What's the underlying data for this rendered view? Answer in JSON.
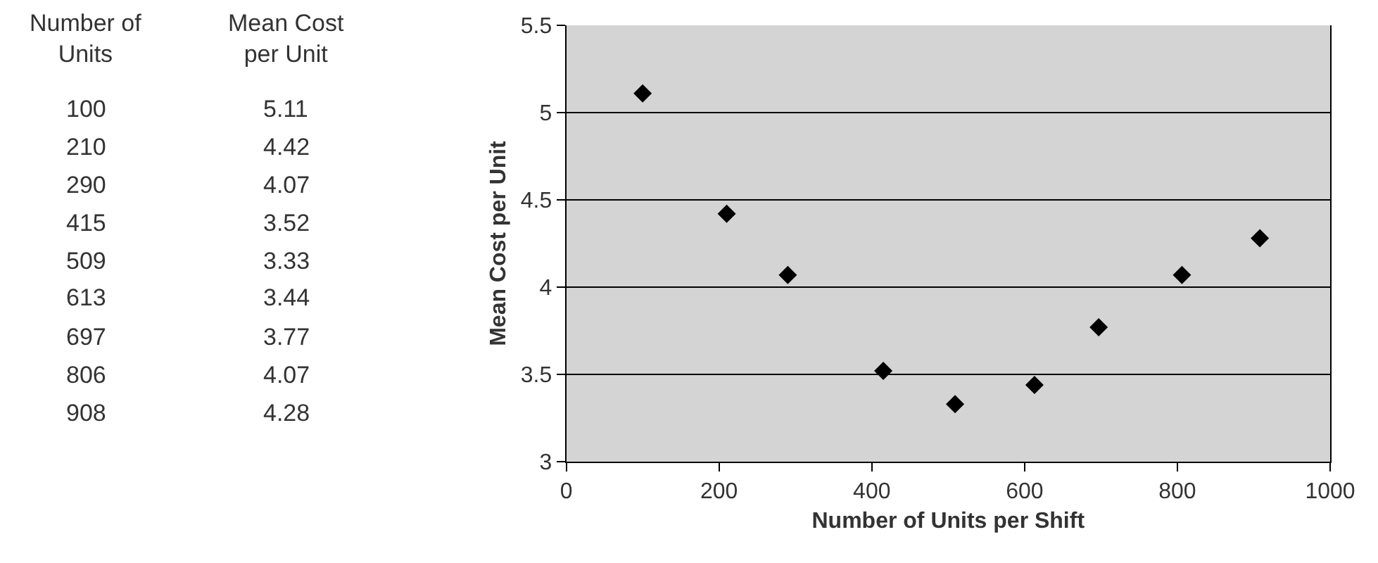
{
  "chart_data": [
    {
      "type": "other",
      "annotations": [
        "Number of Units",
        "Mean Cost per Unit",
        "100",
        "5.11",
        "210",
        "4.42",
        "290",
        "4.07",
        "415",
        "3.52",
        "509",
        "3.33",
        "613",
        "3.44",
        "697",
        "3.77",
        "806",
        "4.07",
        "908",
        "4.28"
      ]
    },
    {
      "type": "scatter",
      "xlabel": "Number of Units per Shift",
      "ylabel": "Mean Cost per Unit",
      "x": [
        100,
        210,
        290,
        415,
        509,
        613,
        697,
        806,
        908
      ],
      "series": [
        {
          "color": "#000000",
          "values": [
            5.11,
            4.42,
            4.07,
            3.52,
            3.33,
            3.44,
            3.77,
            4.07,
            4.28
          ]
        }
      ],
      "xlim": [
        0,
        1000
      ],
      "xticks": [
        0,
        200,
        400,
        600,
        800,
        1000
      ],
      "ylim": [
        3,
        5.5
      ],
      "yticks": [
        3,
        3.5,
        4,
        4.5,
        5,
        5.5
      ],
      "grid": "y",
      "marker": "diamond"
    }
  ]
}
